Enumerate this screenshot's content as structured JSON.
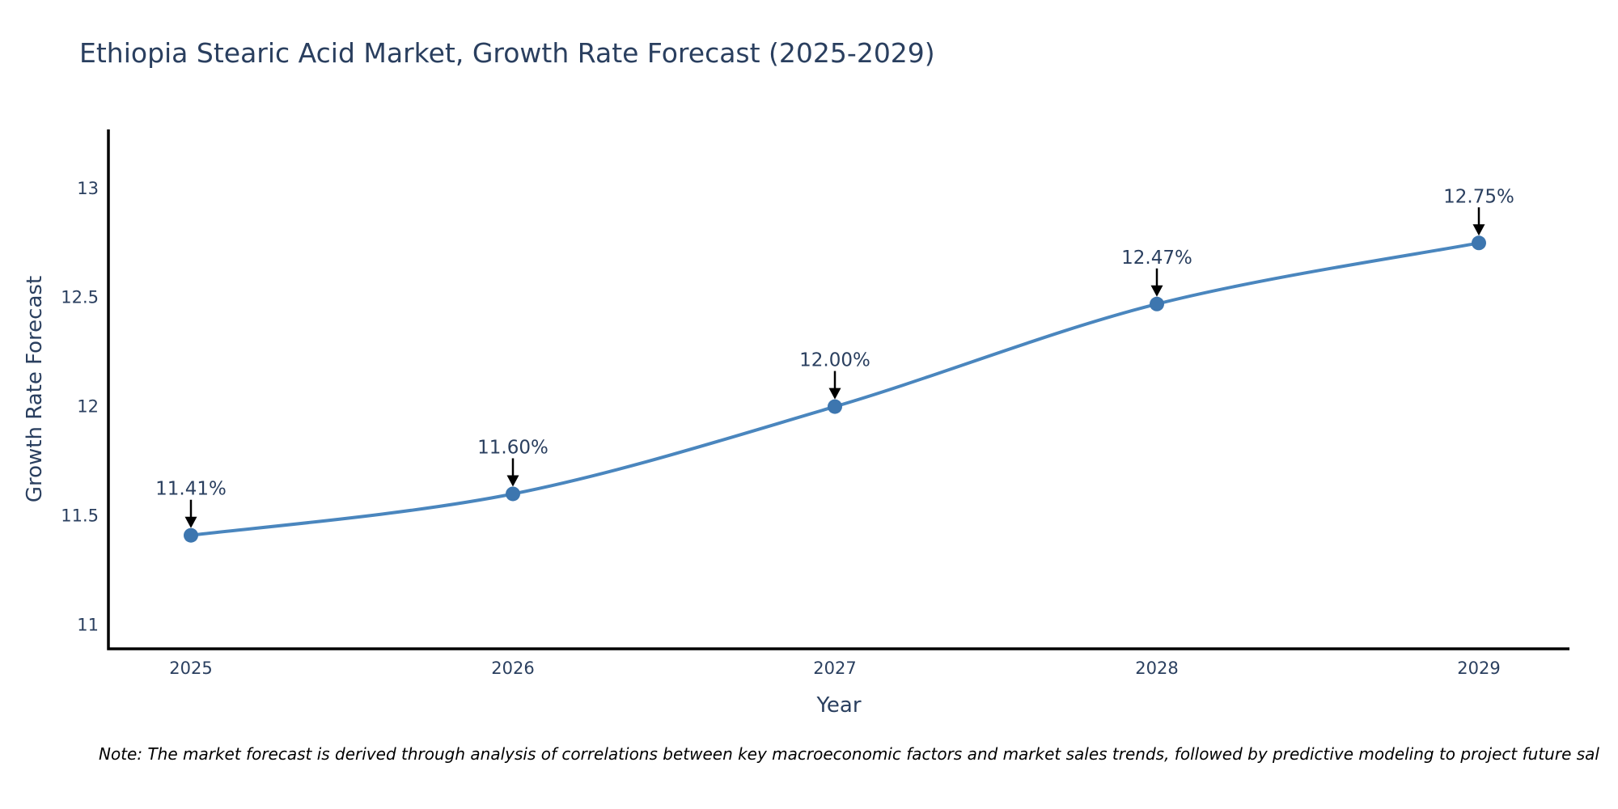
{
  "title": "Ethiopia Stearic Acid Market, Growth Rate Forecast (2025-2029)",
  "note": "Note: The market forecast is derived through analysis of correlations between key macroeconomic factors and market sales trends, followed by predictive modeling to project future sal",
  "colors": {
    "line": "#4a86be",
    "marker": "#3d76af",
    "axis": "#000000",
    "text": "#2a3f5f",
    "annotation_text": "#2a3f5f",
    "arrow": "#000000",
    "background": "#ffffff"
  },
  "chart_data": {
    "type": "line",
    "line_shape": "spline",
    "markers": true,
    "grid": false,
    "legend": "none",
    "title": "Ethiopia Stearic Acid Market, Growth Rate Forecast (2025-2029)",
    "xlabel": "Year",
    "ylabel": "Growth Rate Forecast",
    "x": [
      2025,
      2026,
      2027,
      2028,
      2029
    ],
    "series": [
      {
        "name": "Growth Rate Forecast",
        "values": [
          11.41,
          11.6,
          12.0,
          12.47,
          12.75
        ]
      }
    ],
    "point_labels": [
      "11.41%",
      "11.60%",
      "12.00%",
      "12.47%",
      "12.75%"
    ],
    "xtick_labels": [
      "2025",
      "2026",
      "2027",
      "2028",
      "2029"
    ],
    "ytick_values": [
      11,
      11.5,
      12,
      12.5,
      13
    ],
    "ytick_labels": [
      "11",
      "11.5",
      "12",
      "12.5",
      "13"
    ],
    "ylim": [
      10.89,
      13.27
    ]
  }
}
